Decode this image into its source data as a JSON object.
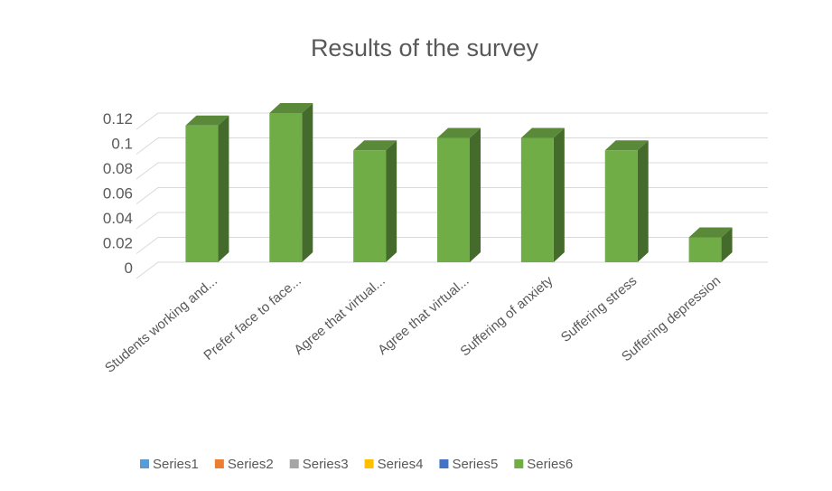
{
  "chart_data": {
    "type": "bar3d",
    "title": "Results of the survey",
    "categories": [
      "Students working and...",
      "Prefer face to face...",
      "Agree that virtual...",
      "Agree that virtual...",
      "Suffering of anxiety",
      "Suffering stress",
      "Suffering depression"
    ],
    "series": [
      {
        "name": "Series1",
        "color": "#5b9bd5",
        "values": [
          null,
          null,
          null,
          null,
          null,
          null,
          null
        ]
      },
      {
        "name": "Series2",
        "color": "#ed7d31",
        "values": [
          null,
          null,
          null,
          null,
          null,
          null,
          null
        ]
      },
      {
        "name": "Series3",
        "color": "#a5a5a5",
        "values": [
          null,
          null,
          null,
          null,
          null,
          null,
          null
        ]
      },
      {
        "name": "Series4",
        "color": "#ffc000",
        "values": [
          null,
          null,
          null,
          null,
          null,
          null,
          null
        ]
      },
      {
        "name": "Series5",
        "color": "#4472c4",
        "values": [
          null,
          null,
          null,
          null,
          null,
          null,
          null
        ]
      },
      {
        "name": "Series6",
        "color": "#70ad47",
        "values": [
          0.11,
          0.12,
          0.09,
          0.1,
          0.1,
          0.09,
          0.02
        ]
      }
    ],
    "ylim": [
      0,
      0.12
    ],
    "yticks": [
      0,
      0.02,
      0.04,
      0.06,
      0.08,
      0.1,
      0.12
    ],
    "grid": true,
    "legend": "bottom"
  }
}
